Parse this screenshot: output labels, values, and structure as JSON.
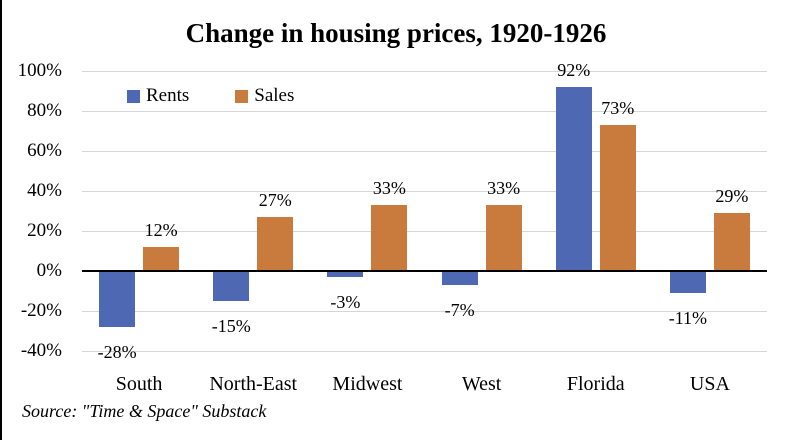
{
  "chart_data": {
    "type": "bar",
    "title": "Change in housing prices, 1920-1926",
    "categories": [
      "South",
      "North-East",
      "Midwest",
      "West",
      "Florida",
      "USA"
    ],
    "series": [
      {
        "name": "Rents",
        "color": "#4f68b4",
        "values": [
          -28,
          -15,
          -3,
          -7,
          92,
          -11
        ],
        "labels": [
          "-28%",
          "-15%",
          "-3%",
          "-7%",
          "92%",
          "-11%"
        ]
      },
      {
        "name": "Sales",
        "color": "#c87b3c",
        "values": [
          12,
          27,
          33,
          33,
          73,
          29
        ],
        "labels": [
          "12%",
          "27%",
          "33%",
          "33%",
          "73%",
          "29%"
        ]
      }
    ],
    "y_axis": {
      "min": -40,
      "max": 100,
      "step": 20,
      "tick_labels": [
        "100%",
        "80%",
        "60%",
        "40%",
        "20%",
        "0%",
        "-20%",
        "-40%"
      ]
    },
    "grid": true,
    "legend_position": "top-left",
    "source_note": "Source: \"Time & Space\" Substack",
    "colors": {
      "gridline": "#d6d6d6",
      "zero_line": "#000000",
      "text": "#000000",
      "background": "#ffffff",
      "frame_left": "#000000"
    }
  }
}
